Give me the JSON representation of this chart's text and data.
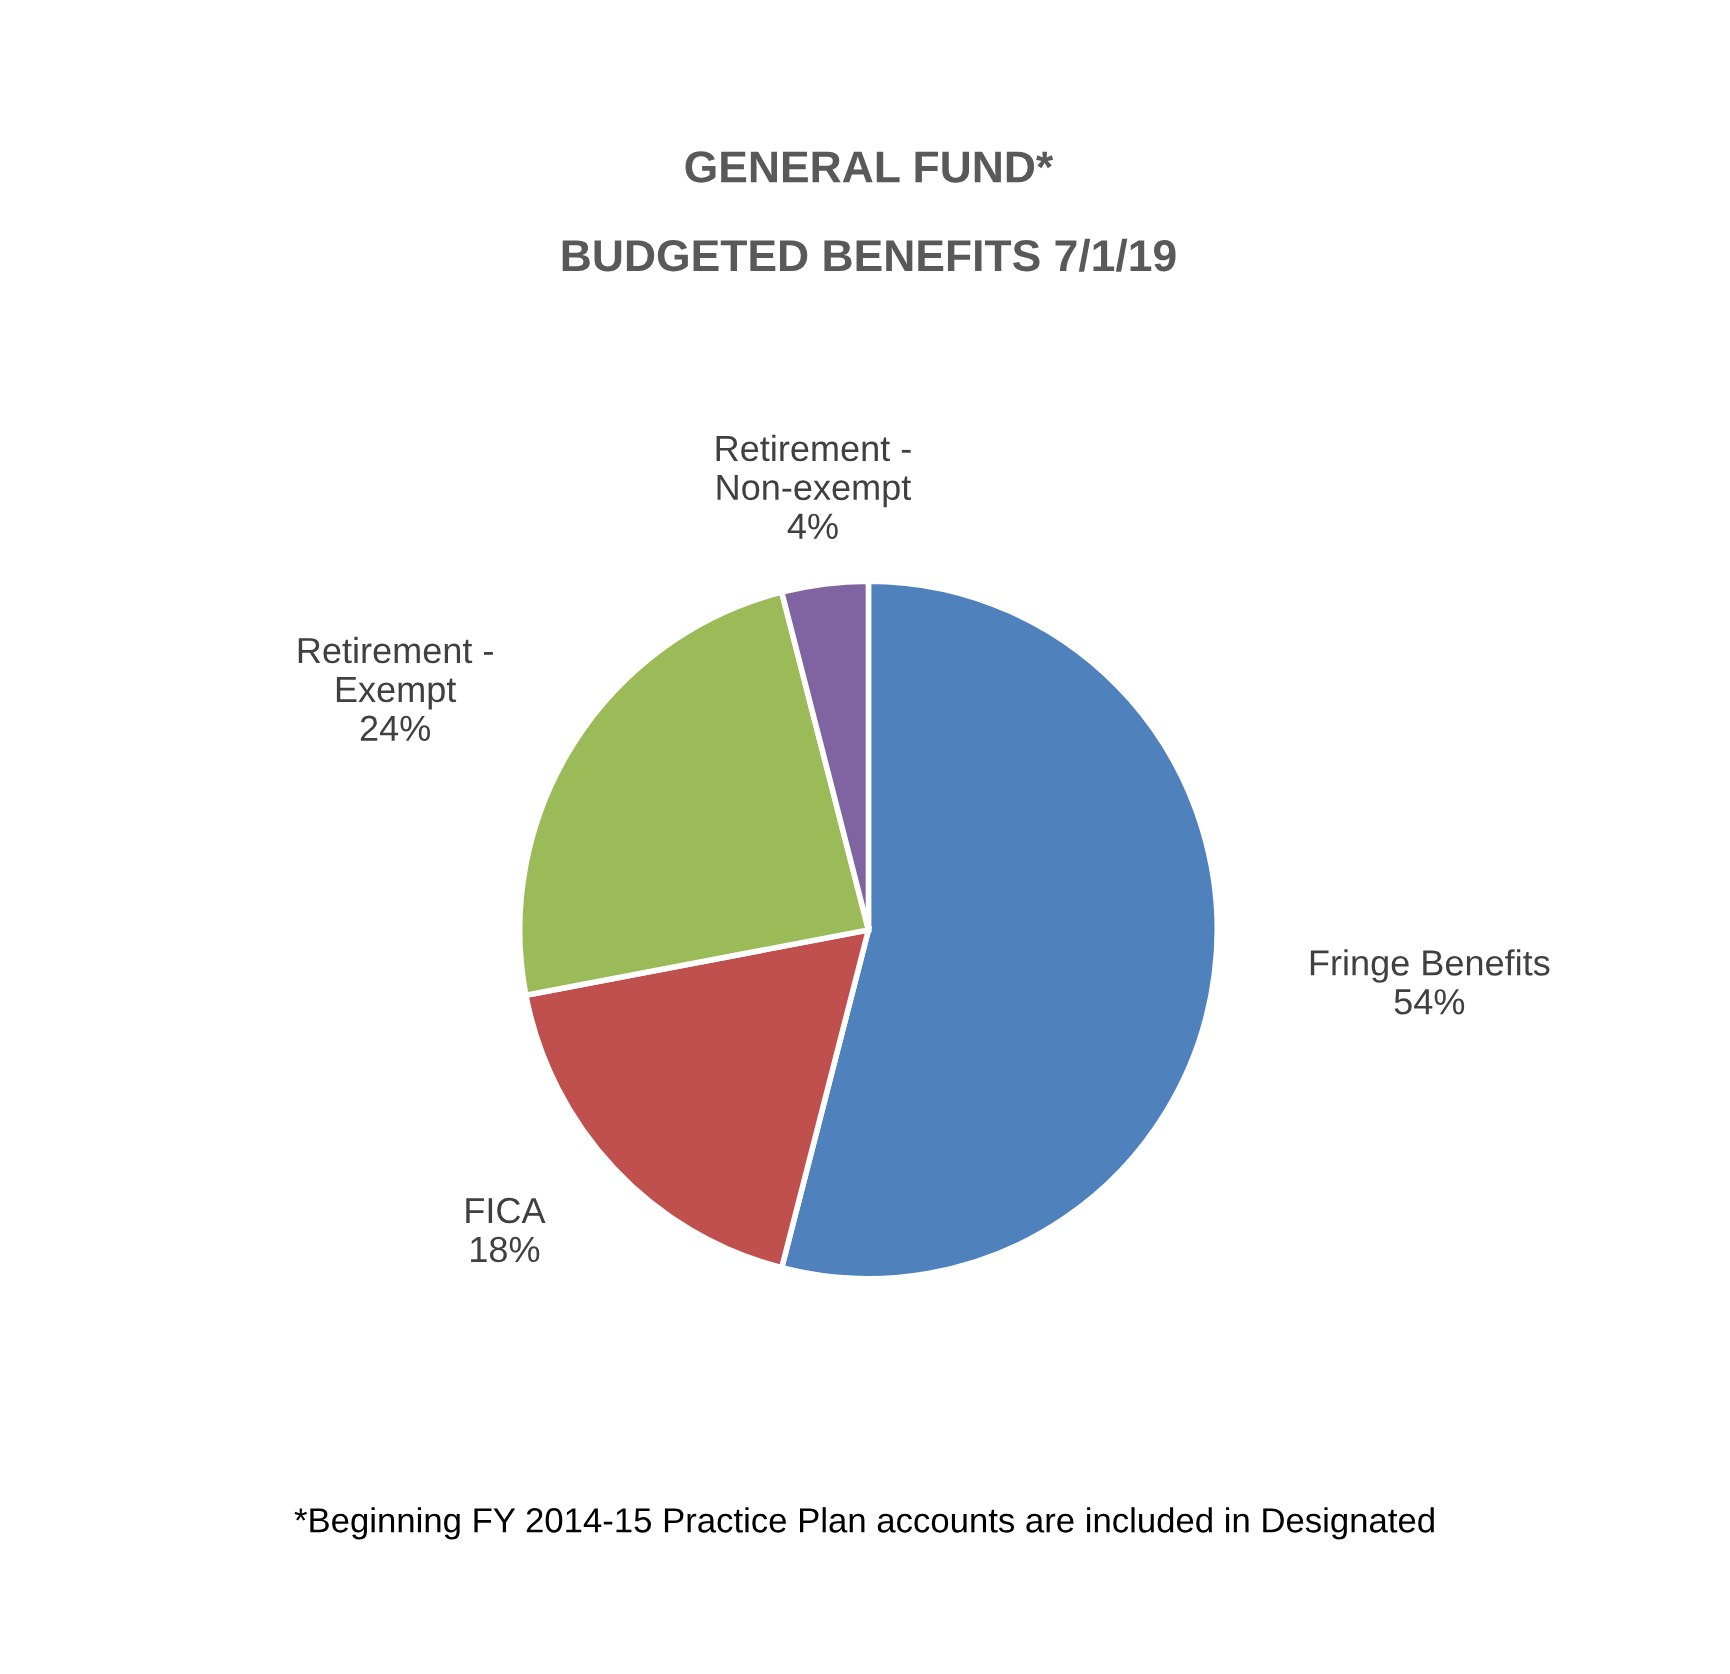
{
  "chart_data": {
    "type": "pie",
    "title": "GENERAL FUND*",
    "subtitle": "BUDGETED BENEFITS 7/1/19",
    "categories": [
      "Fringe Benefits",
      "FICA",
      "Retirement - Exempt",
      "Retirement - Non-exempt"
    ],
    "values": [
      54,
      18,
      24,
      4
    ],
    "value_labels": [
      "54%",
      "18%",
      "24%",
      "4%"
    ],
    "colors": [
      "#4f81bd",
      "#c0504d",
      "#9bbb59",
      "#8064a2"
    ],
    "annotations": [
      "*Beginning FY 2014-15 Practice Plan accounts are included in Designated"
    ]
  }
}
